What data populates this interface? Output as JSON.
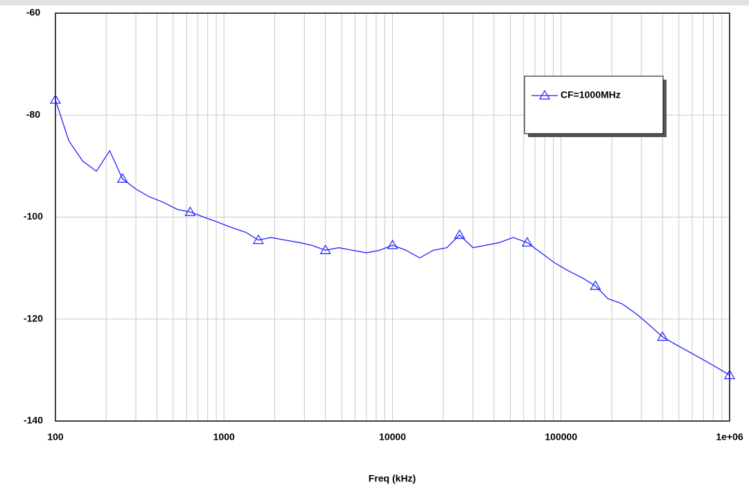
{
  "chart_data": {
    "type": "line",
    "x_label": "Freq (kHz)",
    "x": [
      100,
      120,
      145,
      175,
      210,
      250,
      300,
      360,
      430,
      530,
      630,
      760,
      920,
      1100,
      1350,
      1600,
      1900,
      2300,
      2800,
      3300,
      4000,
      4800,
      5800,
      7000,
      8400,
      10000,
      12000,
      14500,
      17500,
      21000,
      25000,
      30000,
      36000,
      43000,
      52000,
      63000,
      76000,
      92000,
      110000,
      135000,
      160000,
      190000,
      230000,
      280000,
      330000,
      400000,
      480000,
      580000,
      700000,
      840000,
      1000000
    ],
    "series": [
      {
        "name": "CF=1000MHz",
        "color": "#1f1fff",
        "marker": "triangle",
        "markevery": 5,
        "values": [
          -77,
          -85,
          -89,
          -91,
          -87,
          -92.5,
          -94.5,
          -96,
          -97,
          -98.5,
          -99,
          -100,
          -101,
          -102,
          -103,
          -104.5,
          -104,
          -104.5,
          -105,
          -105.5,
          -106.5,
          -106,
          -106.5,
          -107,
          -106.5,
          -105.5,
          -106.5,
          -108,
          -106.5,
          -106,
          -103.5,
          -106,
          -105.5,
          -105,
          -104,
          -105,
          -107,
          -109,
          -110.5,
          -112,
          -113.5,
          -116,
          -117,
          -119,
          -121,
          -123.5,
          -125,
          -126.5,
          -128,
          -129.5,
          -131
        ]
      }
    ],
    "xscale": "log",
    "xlim": [
      100,
      1000000
    ],
    "xticks": [
      100,
      1000,
      10000,
      100000,
      {
        "value": 1000000,
        "label": "1e+06"
      }
    ],
    "ylim": [
      -140,
      -60
    ],
    "yticks": [
      -60,
      -80,
      -100,
      -120,
      -140
    ],
    "grid": true,
    "legend": "upper right"
  }
}
